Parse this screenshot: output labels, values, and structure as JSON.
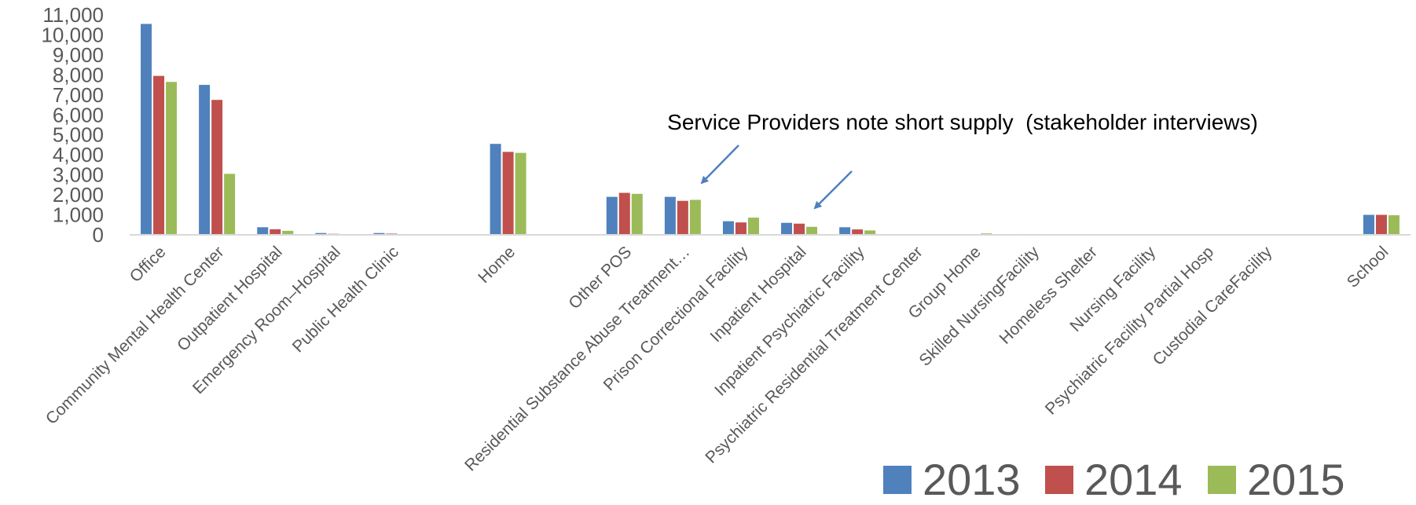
{
  "chart_data": {
    "type": "bar",
    "title": "",
    "xlabel": "",
    "ylabel": "",
    "ylim": [
      0,
      11000
    ],
    "yticks": [
      0,
      1000,
      2000,
      3000,
      4000,
      5000,
      6000,
      7000,
      8000,
      9000,
      10000,
      11000
    ],
    "ytick_labels": [
      "0",
      "1,000",
      "2,000",
      "3,000",
      "4,000",
      "5,000",
      "6,000",
      "7,000",
      "8,000",
      "9,000",
      "10,000",
      "11,000"
    ],
    "grid": false,
    "legend_position": "bottom-right",
    "categories": [
      "Office",
      "Community Mental Health Center",
      "Outpatient Hospital",
      "Emergency Room–Hospital",
      "Public Health Clinic",
      "",
      "Home",
      "",
      "Other POS",
      "Residential Substance Abuse Treatment…",
      "Prison Correctional Facility",
      "Inpatient Hospital",
      "Inpatient Psychiatric Facility",
      "Psychiatric Residential Treatment Center",
      "Group Home",
      "Skilled NursingFacility",
      "Homeless Shelter",
      "Nursing Facility",
      "Psychiatric Facility Partial Hosp",
      "Custodial CareFacility",
      "",
      "School"
    ],
    "series": [
      {
        "name": "2013",
        "color": "#4f81bd",
        "values": [
          10550,
          7500,
          380,
          90,
          90,
          0,
          4550,
          0,
          1900,
          1900,
          680,
          600,
          380,
          20,
          10,
          40,
          0,
          20,
          0,
          0,
          0,
          1000
        ]
      },
      {
        "name": "2014",
        "color": "#c0504d",
        "values": [
          7950,
          6750,
          280,
          50,
          60,
          0,
          4150,
          0,
          2100,
          1700,
          620,
          560,
          270,
          10,
          10,
          40,
          0,
          10,
          0,
          0,
          0,
          1000
        ]
      },
      {
        "name": "2015",
        "color": "#9bbb59",
        "values": [
          7650,
          3050,
          200,
          30,
          40,
          0,
          4100,
          0,
          2050,
          1750,
          860,
          400,
          220,
          10,
          70,
          30,
          0,
          10,
          0,
          0,
          0,
          980
        ]
      }
    ],
    "annotations": [
      {
        "text": "Service Providers note short supply  (stakeholder interviews)",
        "arrows_to": [
          "Residential Substance Abuse Treatment…",
          "Inpatient Hospital"
        ]
      }
    ]
  },
  "colors": {
    "axis": "#d9d9d9",
    "text": "#595959",
    "arrow": "#4f81bd"
  }
}
